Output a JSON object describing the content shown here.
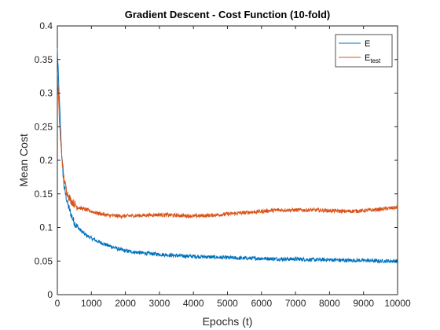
{
  "chart_data": {
    "type": "line",
    "title": "Gradient Descent - Cost Function (10-fold)",
    "xlabel": "Epochs (t)",
    "ylabel": "Mean Cost",
    "xlim": [
      0,
      10000
    ],
    "ylim": [
      0,
      0.4
    ],
    "x_ticks": [
      0,
      1000,
      2000,
      3000,
      4000,
      5000,
      6000,
      7000,
      8000,
      9000,
      10000
    ],
    "x_tick_labels": [
      "0",
      "1000",
      "2000",
      "3000",
      "4000",
      "5000",
      "6000",
      "7000",
      "8000",
      "9000",
      "10000"
    ],
    "y_ticks": [
      0,
      0.05,
      0.1,
      0.15,
      0.2,
      0.25,
      0.3,
      0.35,
      0.4
    ],
    "y_tick_labels": [
      "0",
      "0.05",
      "0.1",
      "0.15",
      "0.2",
      "0.25",
      "0.3",
      "0.35",
      "0.4"
    ],
    "grid": false,
    "legend_position": "top-right",
    "series": [
      {
        "name": "E",
        "color": "#0072BD",
        "x": [
          0,
          50,
          100,
          150,
          200,
          300,
          400,
          500,
          600,
          800,
          1000,
          1200,
          1500,
          1800,
          2000,
          2500,
          3000,
          3500,
          4000,
          4500,
          5000,
          5500,
          6000,
          6500,
          7000,
          7500,
          8000,
          8500,
          9000,
          9500,
          10000
        ],
        "y": [
          0.365,
          0.3,
          0.24,
          0.19,
          0.16,
          0.135,
          0.12,
          0.107,
          0.1,
          0.09,
          0.084,
          0.079,
          0.073,
          0.068,
          0.065,
          0.062,
          0.06,
          0.058,
          0.057,
          0.056,
          0.055,
          0.054,
          0.054,
          0.053,
          0.053,
          0.052,
          0.052,
          0.051,
          0.051,
          0.05,
          0.05
        ]
      },
      {
        "name": "E_test",
        "name_base": "E",
        "name_sub": "test",
        "color": "#D95319",
        "x": [
          0,
          50,
          100,
          150,
          200,
          300,
          400,
          500,
          600,
          800,
          1000,
          1200,
          1500,
          1800,
          2000,
          2500,
          3000,
          3500,
          4000,
          4500,
          5000,
          5500,
          6000,
          6500,
          7000,
          7500,
          8000,
          8500,
          9000,
          9500,
          10000
        ],
        "y": [
          0.335,
          0.27,
          0.225,
          0.195,
          0.17,
          0.15,
          0.14,
          0.135,
          0.13,
          0.127,
          0.124,
          0.121,
          0.118,
          0.117,
          0.117,
          0.118,
          0.119,
          0.118,
          0.117,
          0.118,
          0.12,
          0.122,
          0.124,
          0.126,
          0.126,
          0.126,
          0.125,
          0.124,
          0.125,
          0.127,
          0.13
        ]
      }
    ]
  }
}
